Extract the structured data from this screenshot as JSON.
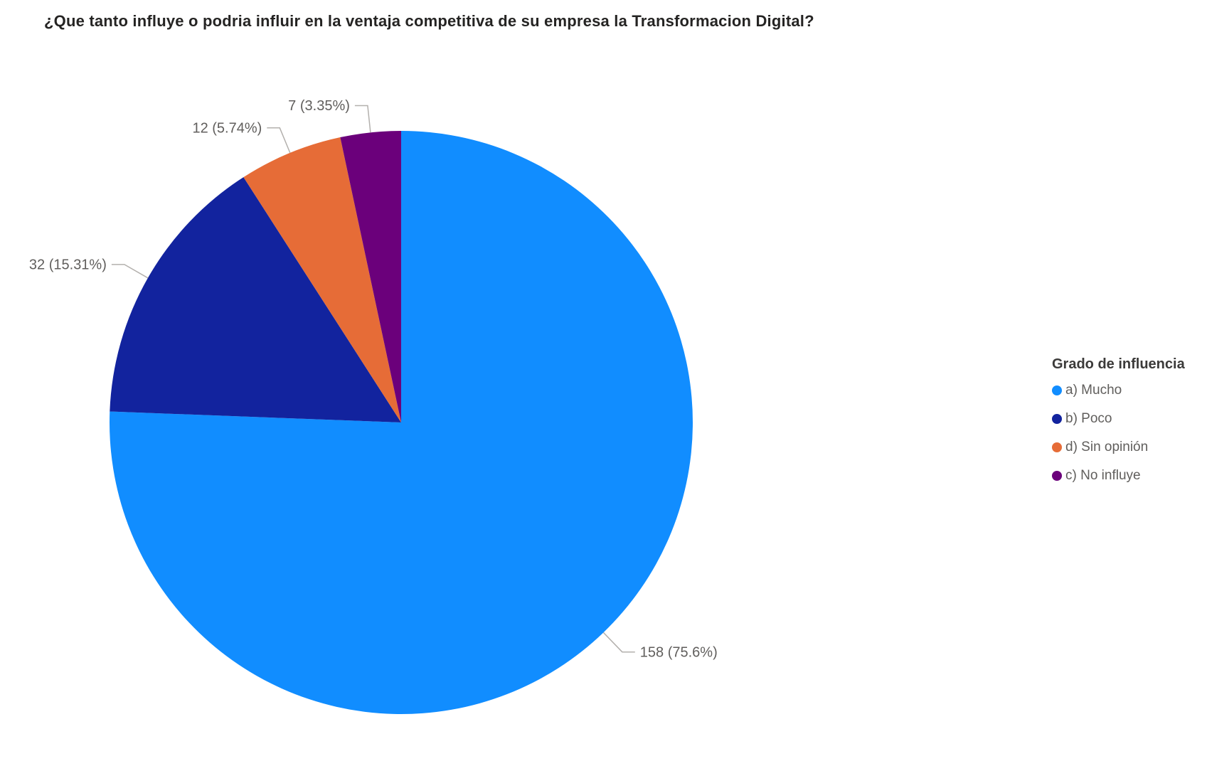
{
  "title": "¿Que tanto influye o podria influir en la ventaja competitiva de su empresa la Transformacion Digital?",
  "legend": {
    "title": "Grado de influencia",
    "position": "right",
    "items": [
      {
        "label": "a) Mucho",
        "color": "#118DFF"
      },
      {
        "label": "b) Poco",
        "color": "#12239E"
      },
      {
        "label": "d) Sin opinión",
        "color": "#E66C37"
      },
      {
        "label": "c) No influye",
        "color": "#6B007B"
      }
    ]
  },
  "chart_data": {
    "type": "pie",
    "title": "¿Que tanto influye o podria influir en la ventaja competitiva de su empresa la Transformacion Digital?",
    "legend_title": "Grado de influencia",
    "legend_position": "right",
    "categories": [
      "a) Mucho",
      "b) Poco",
      "d) Sin opinión",
      "c) No influye"
    ],
    "values": [
      158,
      32,
      12,
      7
    ],
    "percentages": [
      75.6,
      15.31,
      5.74,
      3.35
    ],
    "labels": [
      "158 (75.6%)",
      "32 (15.31%)",
      "12 (5.74%)",
      "7 (3.35%)"
    ],
    "colors": [
      "#118DFF",
      "#12239E",
      "#E66C37",
      "#6B007B"
    ],
    "start_angle_deg": 0,
    "direction": "clockwise",
    "total": 209
  },
  "colors": {
    "background": "#FFFFFF",
    "title_text": "#252423",
    "label_text": "#605E5C",
    "legend_title_text": "#3B3A39",
    "legend_text": "#605E5C",
    "leader_line": "#B3B0AD"
  }
}
